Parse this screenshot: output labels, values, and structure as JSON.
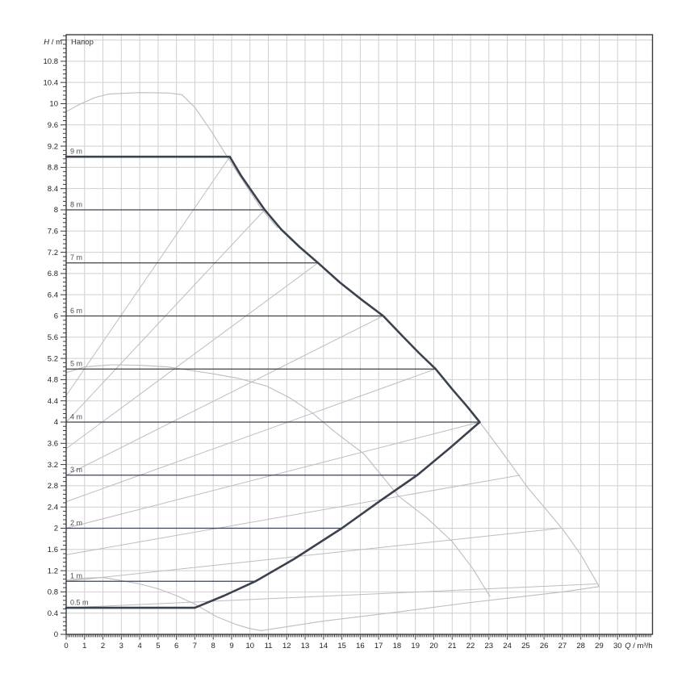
{
  "title": "Напор",
  "colors": {
    "background": "#ffffff",
    "grid": "#cfcfcf",
    "frame": "#3a3a3a",
    "tick": "#3a3a3a",
    "tick_text": "#222222",
    "dark_curve": "#3a4250",
    "gray_curve": "#bdbdbd",
    "line_label": "#4f4f4f",
    "title_text": "#333333"
  },
  "chart_data": {
    "type": "line",
    "title": "Напор",
    "xlabel": "Q / m³/h",
    "ylabel": "H / m",
    "xlim": [
      0,
      31.9
    ],
    "ylim": [
      0,
      11.3
    ],
    "x_ticks": {
      "label_from": 0,
      "label_to": 30,
      "step": 1,
      "grid_to": 31,
      "minor_step": 0.1
    },
    "y_ticks": {
      "label_from": 0,
      "label_to": 10.8,
      "step": 0.4,
      "grid_to": 11.2,
      "minor_step": 0.08
    },
    "grid": true,
    "constant_head_lines": [
      {
        "label": "0.5 m",
        "h": 0.5,
        "q_end": 7.0,
        "bold": true
      },
      {
        "label": "1 m",
        "h": 1,
        "q_end": 10.3,
        "bold": false
      },
      {
        "label": "2 m",
        "h": 2,
        "q_end": 15.0,
        "bold": false
      },
      {
        "label": "3 m",
        "h": 3,
        "q_end": 19.1,
        "bold": false
      },
      {
        "label": "4 m",
        "h": 4,
        "q_end": 22.5,
        "bold": false
      },
      {
        "label": "5 m",
        "h": 5,
        "q_end": 20.1,
        "bold": false
      },
      {
        "label": "6 m",
        "h": 6,
        "q_end": 17.25,
        "bold": false
      },
      {
        "label": "7 m",
        "h": 7,
        "q_end": 13.7,
        "bold": false
      },
      {
        "label": "8 m",
        "h": 8,
        "q_end": 10.8,
        "bold": false
      },
      {
        "label": "9 m",
        "h": 9,
        "q_end": 8.9,
        "bold": true
      }
    ],
    "envelope": {
      "name": "operating-field-boundary",
      "points": [
        [
          0,
          0.5
        ],
        [
          7,
          0.5
        ],
        [
          8.6,
          0.73
        ],
        [
          10.3,
          1.0
        ],
        [
          12.4,
          1.42
        ],
        [
          15.0,
          2.0
        ],
        [
          17.1,
          2.52
        ],
        [
          19.1,
          3.0
        ],
        [
          20.9,
          3.52
        ],
        [
          22.5,
          4.0
        ],
        [
          21.8,
          4.3
        ],
        [
          21.0,
          4.62
        ],
        [
          20.1,
          5.0
        ],
        [
          19.2,
          5.3
        ],
        [
          18.3,
          5.62
        ],
        [
          17.25,
          6.0
        ],
        [
          16.1,
          6.3
        ],
        [
          14.9,
          6.63
        ],
        [
          13.7,
          7.0
        ],
        [
          12.7,
          7.3
        ],
        [
          11.7,
          7.63
        ],
        [
          10.8,
          8.0
        ],
        [
          10.1,
          8.35
        ],
        [
          9.5,
          8.65
        ],
        [
          8.9,
          9.0
        ],
        [
          0,
          9.0
        ]
      ]
    },
    "gray_curves": [
      {
        "name": "pump-curve-max-speed",
        "points": [
          [
            0,
            9.85
          ],
          [
            0.8,
            10.0
          ],
          [
            1.6,
            10.12
          ],
          [
            2.3,
            10.18
          ],
          [
            4.0,
            10.21
          ],
          [
            5.6,
            10.2
          ],
          [
            6.3,
            10.17
          ],
          [
            7.0,
            9.93
          ],
          [
            7.9,
            9.48
          ],
          [
            8.76,
            9.0
          ],
          [
            9.7,
            8.5
          ],
          [
            10.66,
            8.0
          ],
          [
            11.5,
            7.66
          ]
        ]
      },
      {
        "name": "pump-curve-mid-speed",
        "points": [
          [
            0,
            4.93
          ],
          [
            1.0,
            5.04
          ],
          [
            2.5,
            5.08
          ],
          [
            4.0,
            5.07
          ],
          [
            5.5,
            5.04
          ],
          [
            6.5,
            4.99
          ],
          [
            8.0,
            4.91
          ],
          [
            9.3,
            4.83
          ],
          [
            10.9,
            4.68
          ],
          [
            12.2,
            4.45
          ],
          [
            13.4,
            4.17
          ],
          [
            14.6,
            3.82
          ],
          [
            16.2,
            3.4
          ],
          [
            18.1,
            2.6
          ],
          [
            19.6,
            2.2
          ],
          [
            21.0,
            1.75
          ],
          [
            22.1,
            1.25
          ],
          [
            23.05,
            0.72
          ]
        ]
      },
      {
        "name": "pump-curve-min-speed",
        "points": [
          [
            0,
            1.02
          ],
          [
            1.0,
            1.06
          ],
          [
            2.0,
            1.07
          ],
          [
            2.9,
            1.02
          ],
          [
            4.0,
            0.95
          ],
          [
            5.0,
            0.86
          ],
          [
            6.0,
            0.73
          ],
          [
            7.0,
            0.57
          ],
          [
            8.2,
            0.33
          ],
          [
            9.3,
            0.18
          ],
          [
            10.0,
            0.11
          ],
          [
            10.6,
            0.07
          ]
        ]
      },
      {
        "name": "field-bottom-boundary",
        "points": [
          [
            10.6,
            0.07
          ],
          [
            14,
            0.25
          ],
          [
            18,
            0.42
          ],
          [
            22,
            0.6
          ],
          [
            25,
            0.72
          ],
          [
            27,
            0.8
          ],
          [
            29,
            0.9
          ]
        ]
      },
      {
        "name": "field-right-boundary",
        "points": [
          [
            22.5,
            4.0
          ],
          [
            24,
            3.3
          ],
          [
            25.1,
            2.77
          ],
          [
            26,
            2.4
          ],
          [
            27.1,
            1.94
          ],
          [
            28,
            1.5
          ],
          [
            29,
            0.9
          ]
        ]
      }
    ],
    "dpv_diagonals": [
      {
        "name": "dpv-line-9m",
        "from": [
          0,
          4.5
        ],
        "to": [
          8.9,
          9.0
        ]
      },
      {
        "name": "dpv-line-8m",
        "from": [
          0,
          4.0
        ],
        "to": [
          10.8,
          8.0
        ]
      },
      {
        "name": "dpv-line-7m",
        "from": [
          0,
          3.5
        ],
        "to": [
          13.7,
          7.0
        ]
      },
      {
        "name": "dpv-line-6m",
        "from": [
          0,
          3.0
        ],
        "to": [
          17.25,
          6.0
        ]
      },
      {
        "name": "dpv-line-5m",
        "from": [
          0,
          2.5
        ],
        "to": [
          20.1,
          5.0
        ]
      },
      {
        "name": "dpv-line-4m",
        "from": [
          0,
          2.0
        ],
        "to": [
          22.5,
          4.0
        ]
      },
      {
        "name": "dpv-line-3m",
        "from": [
          0,
          1.5
        ],
        "to": [
          24.7,
          3.0
        ]
      },
      {
        "name": "dpv-line-2m",
        "from": [
          0,
          1.0
        ],
        "to": [
          26.9,
          2.0
        ]
      },
      {
        "name": "dpv-line-1m",
        "from": [
          0,
          0.5
        ],
        "to": [
          28.85,
          0.95
        ]
      }
    ]
  }
}
